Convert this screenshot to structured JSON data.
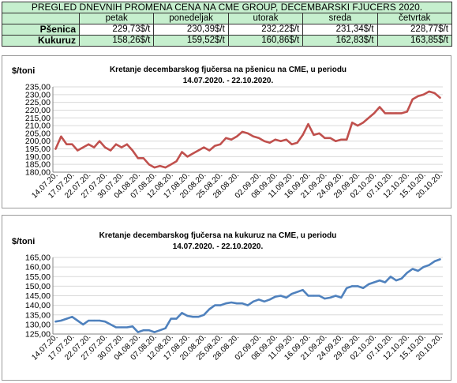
{
  "table": {
    "title": "PREGLED DNEVNIH PROMENA CENA NA CME GROUP, DECEMBARSKI  FJUCERS 2020.",
    "days": [
      "petak",
      "ponedeljak",
      "utorak",
      "sreda",
      "četvrtak"
    ],
    "rows": [
      {
        "label": "Pšenica",
        "values": [
          "229,73$/t",
          "230,39$/t",
          "232,22$/t",
          "231,34$/t",
          "228,77$/t"
        ]
      },
      {
        "label": "Kukuruz",
        "values": [
          "158,26$/t",
          "159,52$/t",
          "160,86$/t",
          "162,83$/t",
          "163,85$/t"
        ]
      }
    ]
  },
  "colors": {
    "table_header_bg": "#c6efce",
    "wheat_line": "#c0504d",
    "corn_line": "#4f81bd",
    "gridline": "#d9d9d9"
  },
  "chart_data": [
    {
      "type": "line",
      "title": "Kretanje decembarskog fjučersa na  pšenicu na CME, u periodu",
      "subtitle": "14.07.2020. - 22.10.2020.",
      "ylabel": "$/toni",
      "ylim": [
        180,
        235
      ],
      "yticks": [
        180,
        185,
        190,
        195,
        200,
        205,
        210,
        215,
        220,
        225,
        230,
        235
      ],
      "ytick_labels": [
        "180,00",
        "185,00",
        "190,00",
        "195,00",
        "200,00",
        "205,00",
        "210,00",
        "215,00",
        "220,00",
        "225,00",
        "230,00",
        "235,00"
      ],
      "tick_labels": [
        "14.07.20.",
        "17.07.20.",
        "22.07.20.",
        "27.07.20.",
        "30.07.20.",
        "04.08.20.",
        "07.08.20.",
        "12.08.20.",
        "17.08.20.",
        "20.08.20.",
        "25.08.20.",
        "28.08.20.",
        "02.09.20.",
        "08.09.20.",
        "11.09.20.",
        "16.09.20.",
        "21.09.20.",
        "24.09.20.",
        "29.09.20.",
        "02.10.20.",
        "07.10.20.",
        "12.10.20.",
        "15.10.20.",
        "20.10.20."
      ],
      "grid": true,
      "series": [
        {
          "values": [
            195,
            203,
            198,
            198,
            194,
            196,
            198,
            196,
            200,
            196,
            194,
            198,
            196,
            198,
            194,
            189,
            189,
            185,
            183,
            184,
            183,
            185,
            187,
            193,
            190,
            192,
            194,
            196,
            194,
            197,
            198,
            202,
            201,
            203,
            206,
            205,
            203,
            202,
            200,
            199,
            201,
            200,
            201,
            198,
            199,
            204,
            211,
            204,
            205,
            202,
            202,
            200,
            201,
            201,
            212,
            210,
            212,
            215,
            218,
            222,
            218,
            218,
            218,
            218,
            219,
            227,
            229,
            230,
            232,
            231,
            228
          ]
        }
      ]
    },
    {
      "type": "line",
      "title": "Kretanje decembarskog fjučersa na  kukuruz na CME, u periodu",
      "subtitle": "14.07.2020. - 22.10.2020.",
      "ylabel": "$/toni",
      "ylim": [
        125,
        165
      ],
      "yticks": [
        125,
        130,
        135,
        140,
        145,
        150,
        155,
        160,
        165
      ],
      "ytick_labels": [
        "125,00",
        "130,00",
        "135,00",
        "140,00",
        "145,00",
        "150,00",
        "155,00",
        "160,00",
        "165,00"
      ],
      "tick_labels": [
        "14.07.20.",
        "17.07.20.",
        "22.07.20.",
        "27.07.20.",
        "30.07.20.",
        "04.08.20.",
        "07.08.20.",
        "12.08.20.",
        "17.08.20.",
        "20.08.20.",
        "25.08.20.",
        "28.08.20.",
        "02.09.20.",
        "08.09.20.",
        "11.09.20.",
        "16.09.20.",
        "21.09.20.",
        "24.09.20.",
        "29.09.20.",
        "02.10.20.",
        "07.10.20.",
        "12.10.20.",
        "15.10.20.",
        "20.10.20."
      ],
      "grid": true,
      "series": [
        {
          "values": [
            131.5,
            132,
            133,
            134,
            132,
            130,
            132,
            132,
            132,
            131.5,
            130,
            128.5,
            128.5,
            128.5,
            129,
            126,
            127,
            127,
            126,
            127,
            128,
            133,
            133,
            136,
            134.5,
            134,
            134,
            135,
            138,
            140,
            140,
            141,
            141.5,
            141,
            141,
            140,
            142,
            143,
            142,
            143,
            144.5,
            145,
            144,
            146,
            147,
            148,
            145,
            145,
            145,
            143.5,
            144,
            145,
            144,
            149,
            150,
            150,
            149,
            151,
            152,
            153,
            152,
            155,
            153,
            154,
            157,
            159,
            158,
            160,
            161,
            163,
            164
          ]
        }
      ]
    }
  ]
}
